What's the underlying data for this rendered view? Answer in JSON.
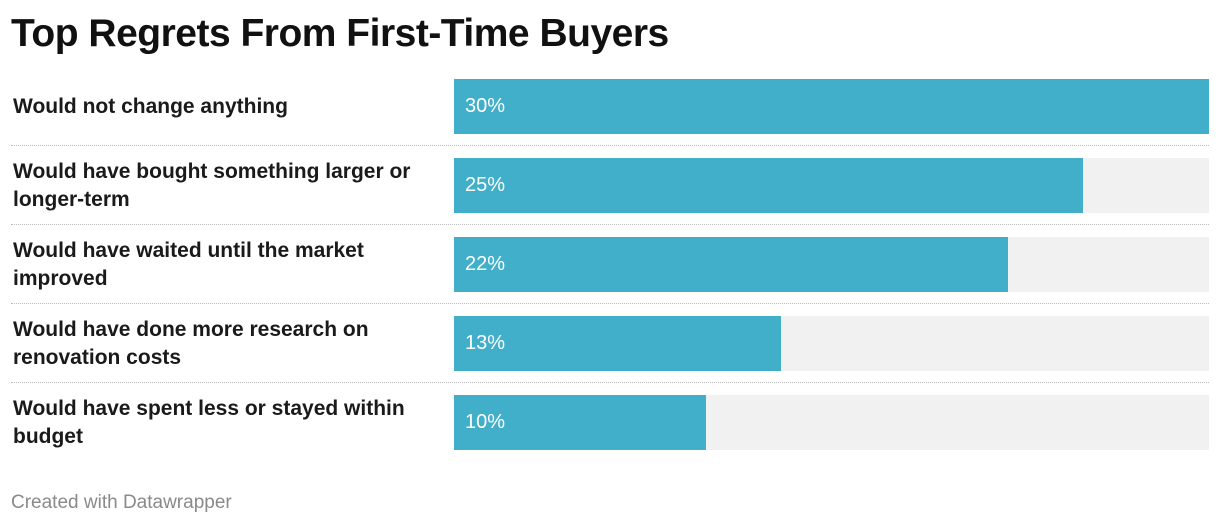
{
  "title": "Top Regrets From First-Time Buyers",
  "footer": "Created with Datawrapper",
  "colors": {
    "bar": "#41afc9",
    "track": "#f1f1f1",
    "divider": "#bdbdbd",
    "text": "#1a1a1a",
    "footer": "#8a8a8a"
  },
  "chart_data": {
    "type": "bar",
    "orientation": "horizontal",
    "categories": [
      "Would not change anything",
      "Would have bought something larger or longer-term",
      "Would have waited until the market improved",
      "Would have done more research on renovation costs",
      "Would have spent less or stayed within budget"
    ],
    "values": [
      30,
      25,
      22,
      13,
      10
    ],
    "value_labels": [
      "30%",
      "25%",
      "22%",
      "13%",
      "10%"
    ],
    "xlim": [
      0,
      30
    ],
    "grid": false,
    "legend": "none"
  }
}
